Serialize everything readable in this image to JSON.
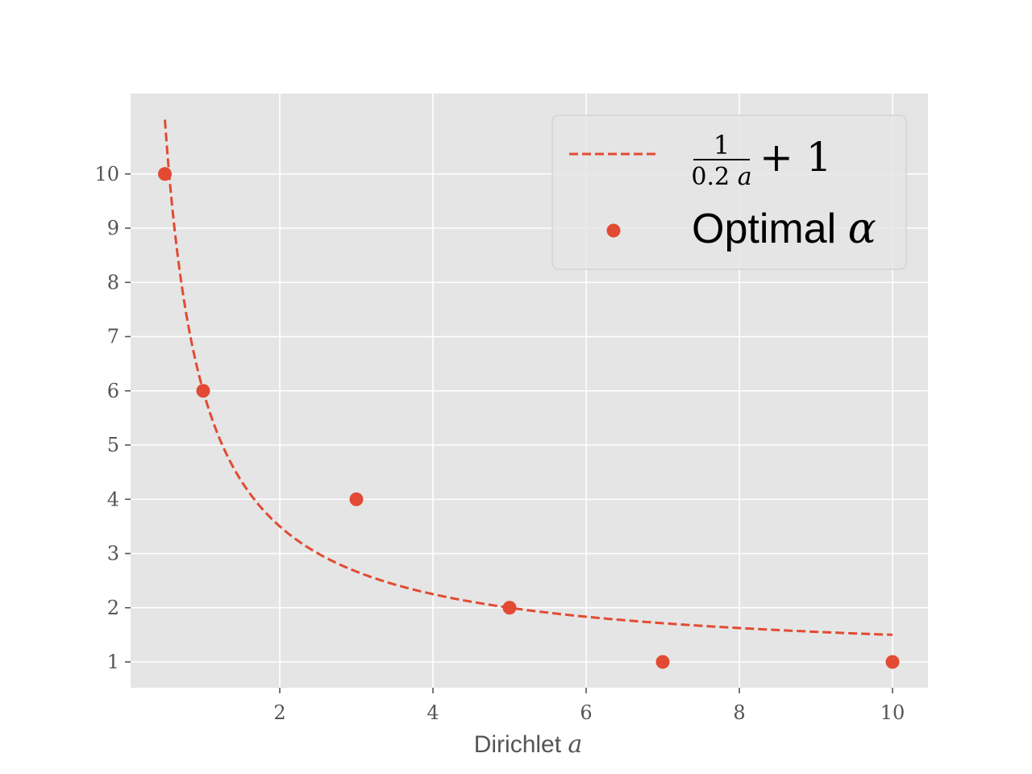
{
  "chart_data": {
    "type": "scatter",
    "title": "",
    "xlabel": "Dirichlet",
    "xlabel_symbol": "a",
    "ylabel": "",
    "xlim": [
      0.1,
      10.5
    ],
    "ylim": [
      0.5,
      11.45
    ],
    "xticks": [
      2,
      4,
      6,
      8,
      10
    ],
    "yticks": [
      1,
      2,
      3,
      4,
      5,
      6,
      7,
      8,
      9,
      10
    ],
    "grid": true,
    "legend_position": "top-right",
    "series": [
      {
        "name": "1/(0.2a) + 1",
        "kind": "line",
        "style": "dashed",
        "color": "#E24A33",
        "function": "1/(0.2*a)+1",
        "x_range": [
          0.5,
          10
        ]
      },
      {
        "name": "Optimal α",
        "kind": "scatter",
        "color": "#E24A33",
        "x": [
          0.5,
          1,
          3,
          5,
          7,
          10
        ],
        "y": [
          10,
          6,
          4,
          2,
          1,
          1
        ]
      }
    ],
    "legend": {
      "line_numerator": "1",
      "line_denominator_number": "0.2",
      "line_denominator_symbol": "a",
      "line_suffix": "+ 1",
      "scatter_text": "Optimal",
      "scatter_symbol": "α"
    }
  },
  "colors": {
    "plot_background": "#E5E5E5",
    "grid": "#FFFFFF",
    "accent": "#E24A33",
    "tick_text": "#555555"
  }
}
